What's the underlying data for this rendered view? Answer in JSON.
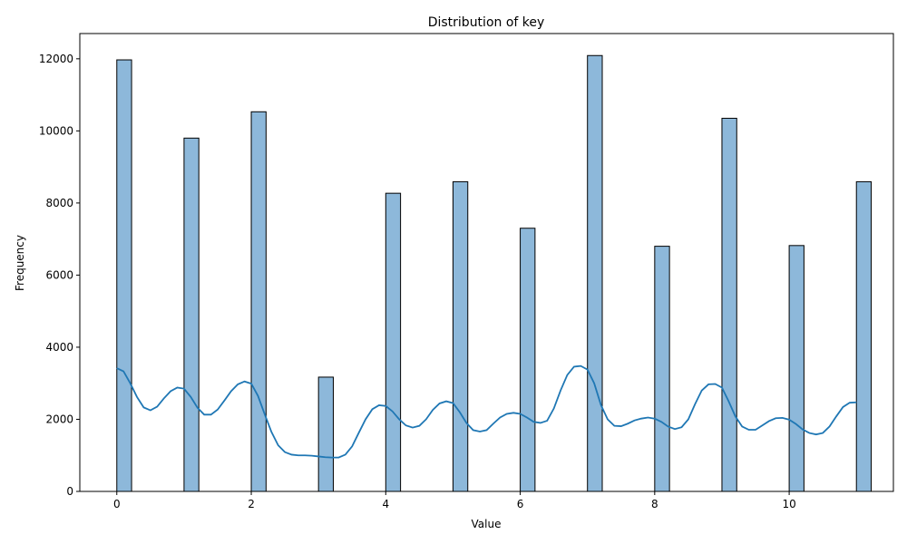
{
  "chart_data": {
    "type": "bar",
    "title": "Distribution of key",
    "xlabel": "Value",
    "ylabel": "Frequency",
    "xlim": [
      -0.55,
      11.55
    ],
    "ylim": [
      0,
      12700
    ],
    "x_ticks": [
      0,
      2,
      4,
      6,
      8,
      10
    ],
    "y_ticks": [
      0,
      2000,
      4000,
      6000,
      8000,
      10000,
      12000
    ],
    "bin_width": 0.22,
    "categories": [
      0,
      1,
      2,
      3,
      4,
      5,
      6,
      7,
      8,
      9,
      10,
      11
    ],
    "values": [
      11970,
      9800,
      10530,
      3170,
      8270,
      8590,
      7300,
      12090,
      6800,
      10350,
      6820,
      8590
    ],
    "bar_color": "#8db8da",
    "bar_edge_color": "#000000",
    "kde_color": "#1f77b4",
    "kde": {
      "x": [
        0,
        0.1,
        0.2,
        0.3,
        0.4,
        0.5,
        0.6,
        0.7,
        0.8,
        0.9,
        1.0,
        1.1,
        1.2,
        1.3,
        1.4,
        1.5,
        1.6,
        1.7,
        1.8,
        1.9,
        2.0,
        2.1,
        2.2,
        2.3,
        2.4,
        2.5,
        2.6,
        2.7,
        2.8,
        2.9,
        3.0,
        3.1,
        3.2,
        3.3,
        3.4,
        3.5,
        3.6,
        3.7,
        3.8,
        3.9,
        4.0,
        4.1,
        4.2,
        4.3,
        4.4,
        4.5,
        4.6,
        4.7,
        4.8,
        4.9,
        5.0,
        5.1,
        5.2,
        5.3,
        5.4,
        5.5,
        5.6,
        5.7,
        5.8,
        5.9,
        6.0,
        6.1,
        6.2,
        6.3,
        6.4,
        6.5,
        6.6,
        6.7,
        6.8,
        6.9,
        7.0,
        7.1,
        7.2,
        7.3,
        7.4,
        7.5,
        7.6,
        7.7,
        7.8,
        7.9,
        8.0,
        8.1,
        8.2,
        8.3,
        8.4,
        8.5,
        8.6,
        8.7,
        8.8,
        8.9,
        9.0,
        9.1,
        9.2,
        9.3,
        9.4,
        9.5,
        9.6,
        9.7,
        9.8,
        9.9,
        10.0,
        10.1,
        10.2,
        10.3,
        10.4,
        10.5,
        10.6,
        10.7,
        10.8,
        10.9,
        11.0
      ],
      "y": [
        3420,
        3330,
        3000,
        2620,
        2330,
        2250,
        2350,
        2580,
        2780,
        2880,
        2850,
        2620,
        2320,
        2130,
        2130,
        2270,
        2520,
        2780,
        2970,
        3050,
        2990,
        2650,
        2140,
        1650,
        1280,
        1090,
        1020,
        1000,
        1000,
        990,
        970,
        950,
        940,
        940,
        1020,
        1250,
        1630,
        2000,
        2280,
        2390,
        2370,
        2220,
        2000,
        1830,
        1770,
        1820,
        2000,
        2260,
        2440,
        2500,
        2450,
        2200,
        1900,
        1700,
        1660,
        1700,
        1880,
        2050,
        2150,
        2180,
        2150,
        2050,
        1930,
        1900,
        1960,
        2300,
        2800,
        3230,
        3460,
        3480,
        3380,
        3000,
        2400,
        2000,
        1820,
        1810,
        1880,
        1970,
        2020,
        2050,
        2020,
        1930,
        1800,
        1730,
        1780,
        2000,
        2420,
        2800,
        2970,
        2980,
        2880,
        2500,
        2080,
        1800,
        1710,
        1710,
        1830,
        1950,
        2030,
        2040,
        1990,
        1870,
        1720,
        1620,
        1580,
        1620,
        1800,
        2080,
        2340,
        2460,
        2470
      ]
    }
  }
}
